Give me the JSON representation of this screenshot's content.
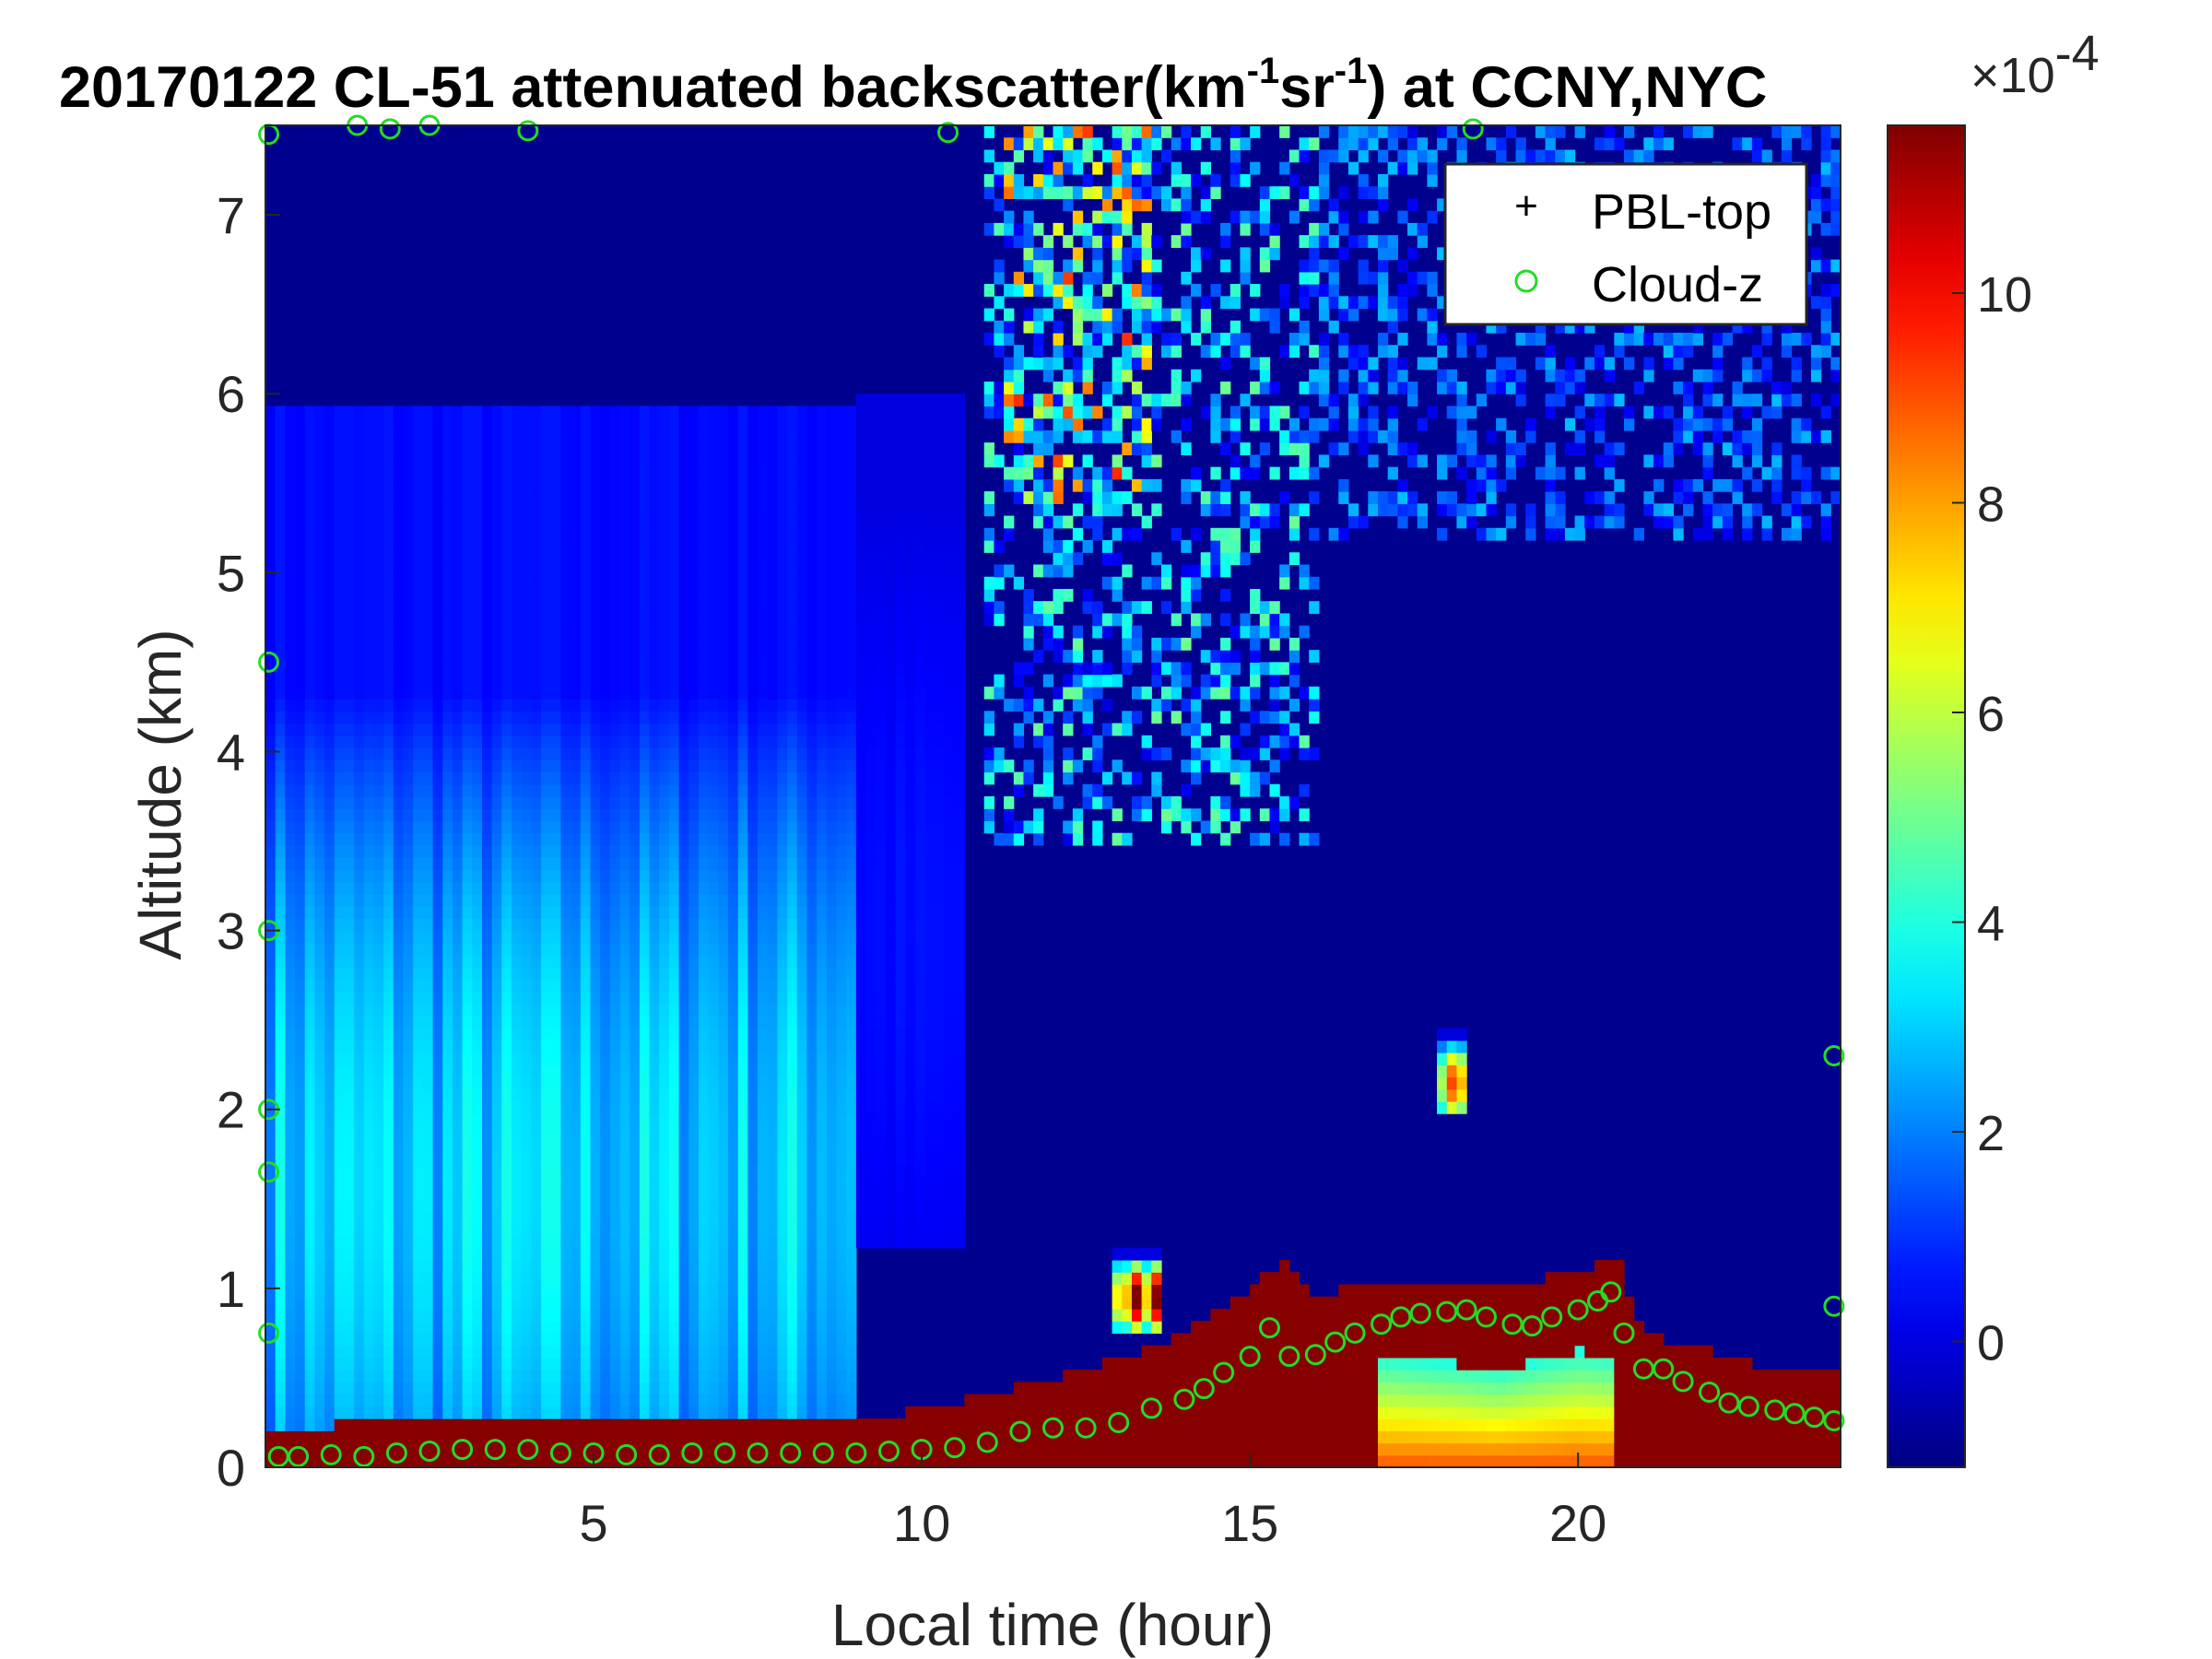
{
  "chart_data": {
    "type": "heatmap",
    "title": {
      "prefix": "20170122  CL-51 attenuated backscatter(km",
      "sup1": "-1",
      "mid": "sr",
      "sup2": "-1",
      "suffix": ") at CCNY,NYC"
    },
    "xlabel": "Local time (hour)",
    "ylabel": "Altitude (km)",
    "xlim": [
      0,
      24
    ],
    "ylim": [
      0,
      7.5
    ],
    "xticks": [
      5,
      10,
      15,
      20
    ],
    "yticks": [
      0,
      1,
      2,
      3,
      4,
      5,
      6,
      7
    ],
    "colorbar": {
      "colormap": "jet",
      "clim": [
        -1.2,
        11.6
      ],
      "ticks": [
        0,
        2,
        4,
        6,
        8,
        10
      ],
      "exponent_base": "×10",
      "exponent": "-4",
      "colors": [
        "#00008f",
        "#0000ff",
        "#00ffff",
        "#ffff00",
        "#ff0000",
        "#800000"
      ]
    },
    "legend": {
      "position": "top-right",
      "entries": [
        {
          "label": "PBL-top",
          "marker": "+",
          "color": "#000000"
        },
        {
          "label": "Cloud-z",
          "marker": "o",
          "color": "#22dd22"
        }
      ]
    },
    "background_value": -1,
    "regions": [
      {
        "name": "aerosol-layer-morning",
        "t0": 0.0,
        "t1": 9.0,
        "z0": 0.2,
        "z1": 5.95,
        "peak_z": 1.6,
        "peak_value": 3.5
      },
      {
        "name": "residual-aerosol-9-10h",
        "t0": 9.0,
        "t1": 10.7,
        "z0": 1.2,
        "z1": 6.0,
        "peak_z": 3.0,
        "peak_value": 0.6
      },
      {
        "name": "upper-cloud-11-13h",
        "t0": 11.2,
        "t1": 13.5,
        "z0": 5.4,
        "z1": 7.5,
        "peak_z": 7.0,
        "peak_value": 9.5
      },
      {
        "name": "upper-cloud-fallstreaks",
        "t0": 11.0,
        "t1": 16.0,
        "z0": 3.5,
        "z1": 7.5,
        "peak_z": 6.2,
        "peak_value": 5.0
      },
      {
        "name": "upper-cloud-16-24h",
        "t0": 16.0,
        "t1": 24.0,
        "z0": 5.2,
        "z1": 7.5,
        "peak_z": 6.5,
        "peak_value": 2.8
      },
      {
        "name": "isolated-cloud-18h",
        "t0": 17.8,
        "t1": 18.3,
        "z0": 1.95,
        "z1": 2.45,
        "peak_z": 2.15,
        "peak_value": 8.5
      },
      {
        "name": "low-cloud-13h",
        "t0": 12.9,
        "t1": 13.6,
        "z0": 0.72,
        "z1": 1.2,
        "peak_z": 0.95,
        "peak_value": 11.0
      }
    ],
    "surface_layer": {
      "times": [
        0,
        2,
        4,
        6,
        8,
        9,
        10,
        11,
        12,
        13,
        14,
        15,
        15.5,
        16,
        17,
        18,
        19,
        20,
        20.6,
        21,
        22,
        23,
        24
      ],
      "top_km": [
        0.2,
        0.27,
        0.3,
        0.28,
        0.25,
        0.25,
        0.33,
        0.4,
        0.5,
        0.6,
        0.75,
        1.0,
        1.15,
        0.95,
        1.05,
        1.05,
        1.0,
        1.1,
        1.15,
        0.75,
        0.65,
        0.55,
        0.55
      ],
      "value": 11.5
    },
    "mixed_layer_core": {
      "t0": 17.0,
      "t1": 20.6,
      "top_km": [
        0.62,
        0.6,
        0.58,
        0.55,
        0.6,
        0.65,
        0.62
      ],
      "bottom_value": 9.0,
      "top_value": 4.0
    },
    "series": [
      {
        "name": "Cloud-z",
        "marker": "circle",
        "x": [
          0.2,
          0.5,
          1.0,
          1.5,
          2.0,
          2.5,
          3.0,
          3.5,
          4.0,
          4.5,
          5.0,
          5.5,
          6.0,
          6.5,
          7.0,
          7.5,
          8.0,
          8.5,
          9.0,
          9.5,
          10.0,
          10.5,
          11.0,
          11.5,
          12.0,
          12.5,
          13.0,
          13.5,
          14.0,
          14.3,
          14.6,
          15.0,
          15.3,
          15.6,
          16.0,
          16.3,
          16.6,
          17.0,
          17.3,
          17.6,
          18.0,
          18.3,
          18.6,
          19.0,
          19.3,
          19.6,
          20.0,
          20.3,
          20.5,
          20.7,
          21.0,
          21.3,
          21.6,
          22.0,
          22.3,
          22.6,
          23.0,
          23.3,
          23.6,
          23.9
        ],
        "y": [
          0.06,
          0.06,
          0.07,
          0.06,
          0.08,
          0.09,
          0.1,
          0.1,
          0.1,
          0.08,
          0.08,
          0.07,
          0.07,
          0.08,
          0.08,
          0.08,
          0.08,
          0.08,
          0.08,
          0.09,
          0.1,
          0.11,
          0.14,
          0.2,
          0.22,
          0.22,
          0.25,
          0.33,
          0.38,
          0.44,
          0.53,
          0.62,
          0.78,
          0.62,
          0.63,
          0.7,
          0.75,
          0.8,
          0.84,
          0.86,
          0.87,
          0.88,
          0.84,
          0.8,
          0.79,
          0.84,
          0.88,
          0.93,
          0.98,
          0.75,
          0.55,
          0.55,
          0.48,
          0.42,
          0.36,
          0.34,
          0.32,
          0.3,
          0.28,
          0.26
        ]
      },
      {
        "name": "Cloud-z (sparse)",
        "marker": "circle",
        "x": [
          0.05,
          0.05,
          0.05,
          0.05,
          0.05,
          0.05,
          1.4,
          1.9,
          2.5,
          4.0,
          10.4,
          18.4,
          23.9,
          23.9
        ],
        "y": [
          7.45,
          4.5,
          3.0,
          2.0,
          1.65,
          0.75,
          7.5,
          7.48,
          7.5,
          7.47,
          7.46,
          7.48,
          0.9,
          2.3
        ]
      }
    ]
  }
}
